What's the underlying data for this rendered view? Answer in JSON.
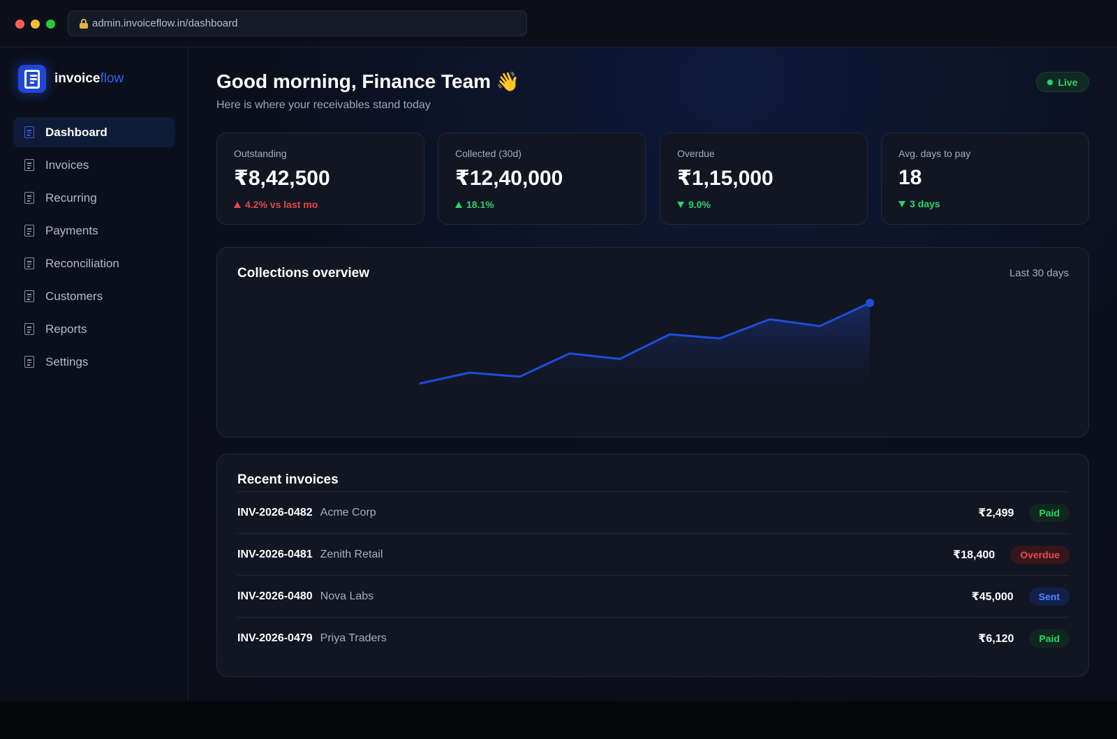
{
  "browser": {
    "url": "admin.invoiceflow.in/dashboard"
  },
  "brand": {
    "name_primary": "invoice",
    "name_accent": "flow",
    "accent_color": "#2f63f0"
  },
  "sidebar": {
    "items": [
      {
        "label": "Dashboard",
        "icon": "document-icon",
        "active": true
      },
      {
        "label": "Invoices",
        "icon": "document-icon",
        "active": false
      },
      {
        "label": "Recurring",
        "icon": "document-icon",
        "active": false
      },
      {
        "label": "Payments",
        "icon": "document-icon",
        "active": false
      },
      {
        "label": "Reconciliation",
        "icon": "document-icon",
        "active": false
      },
      {
        "label": "Customers",
        "icon": "document-icon",
        "active": false
      },
      {
        "label": "Reports",
        "icon": "document-icon",
        "active": false
      },
      {
        "label": "Settings",
        "icon": "document-icon",
        "active": false
      }
    ]
  },
  "header": {
    "greeting": "Good morning, Finance Team",
    "greeting_emoji": "👋",
    "subtitle": "Here is where your receivables stand today",
    "live_label": "Live",
    "live_color": "#2bd26b"
  },
  "kpis": [
    {
      "label": "Outstanding",
      "value": "₹8,42,500",
      "delta": "4.2% vs last mo",
      "direction": "up",
      "tone": "red"
    },
    {
      "label": "Collected (30d)",
      "value": "₹12,40,000",
      "delta": "18.1%",
      "direction": "up",
      "tone": "green"
    },
    {
      "label": "Overdue",
      "value": "₹1,15,000",
      "delta": "9.0%",
      "direction": "down",
      "tone": "green"
    },
    {
      "label": "Avg. days to pay",
      "value": "18",
      "delta": "3 days",
      "direction": "down",
      "tone": "green"
    }
  ],
  "collections": {
    "title": "Collections overview",
    "range": "Last 30 days",
    "line_color": "#1d4ed8"
  },
  "chart_data": {
    "type": "area",
    "title": "Collections overview",
    "x": [
      1,
      2,
      3,
      4,
      5,
      6,
      7,
      8,
      9,
      10
    ],
    "values": [
      16,
      24,
      21,
      38,
      34,
      52,
      49,
      63,
      58,
      75
    ],
    "ylim": [
      0,
      100
    ],
    "grid": false,
    "legend": "none"
  },
  "recent_invoices": {
    "title": "Recent invoices",
    "rows": [
      {
        "id": "INV-2026-0482",
        "customer": "Acme Corp",
        "amount": "₹2,499",
        "status": "Paid",
        "status_type": "paid"
      },
      {
        "id": "INV-2026-0481",
        "customer": "Zenith Retail",
        "amount": "₹18,400",
        "status": "Overdue",
        "status_type": "overdue"
      },
      {
        "id": "INV-2026-0480",
        "customer": "Nova Labs",
        "amount": "₹45,000",
        "status": "Sent",
        "status_type": "sent"
      },
      {
        "id": "INV-2026-0479",
        "customer": "Priya Traders",
        "amount": "₹6,120",
        "status": "Paid",
        "status_type": "paid"
      }
    ]
  }
}
